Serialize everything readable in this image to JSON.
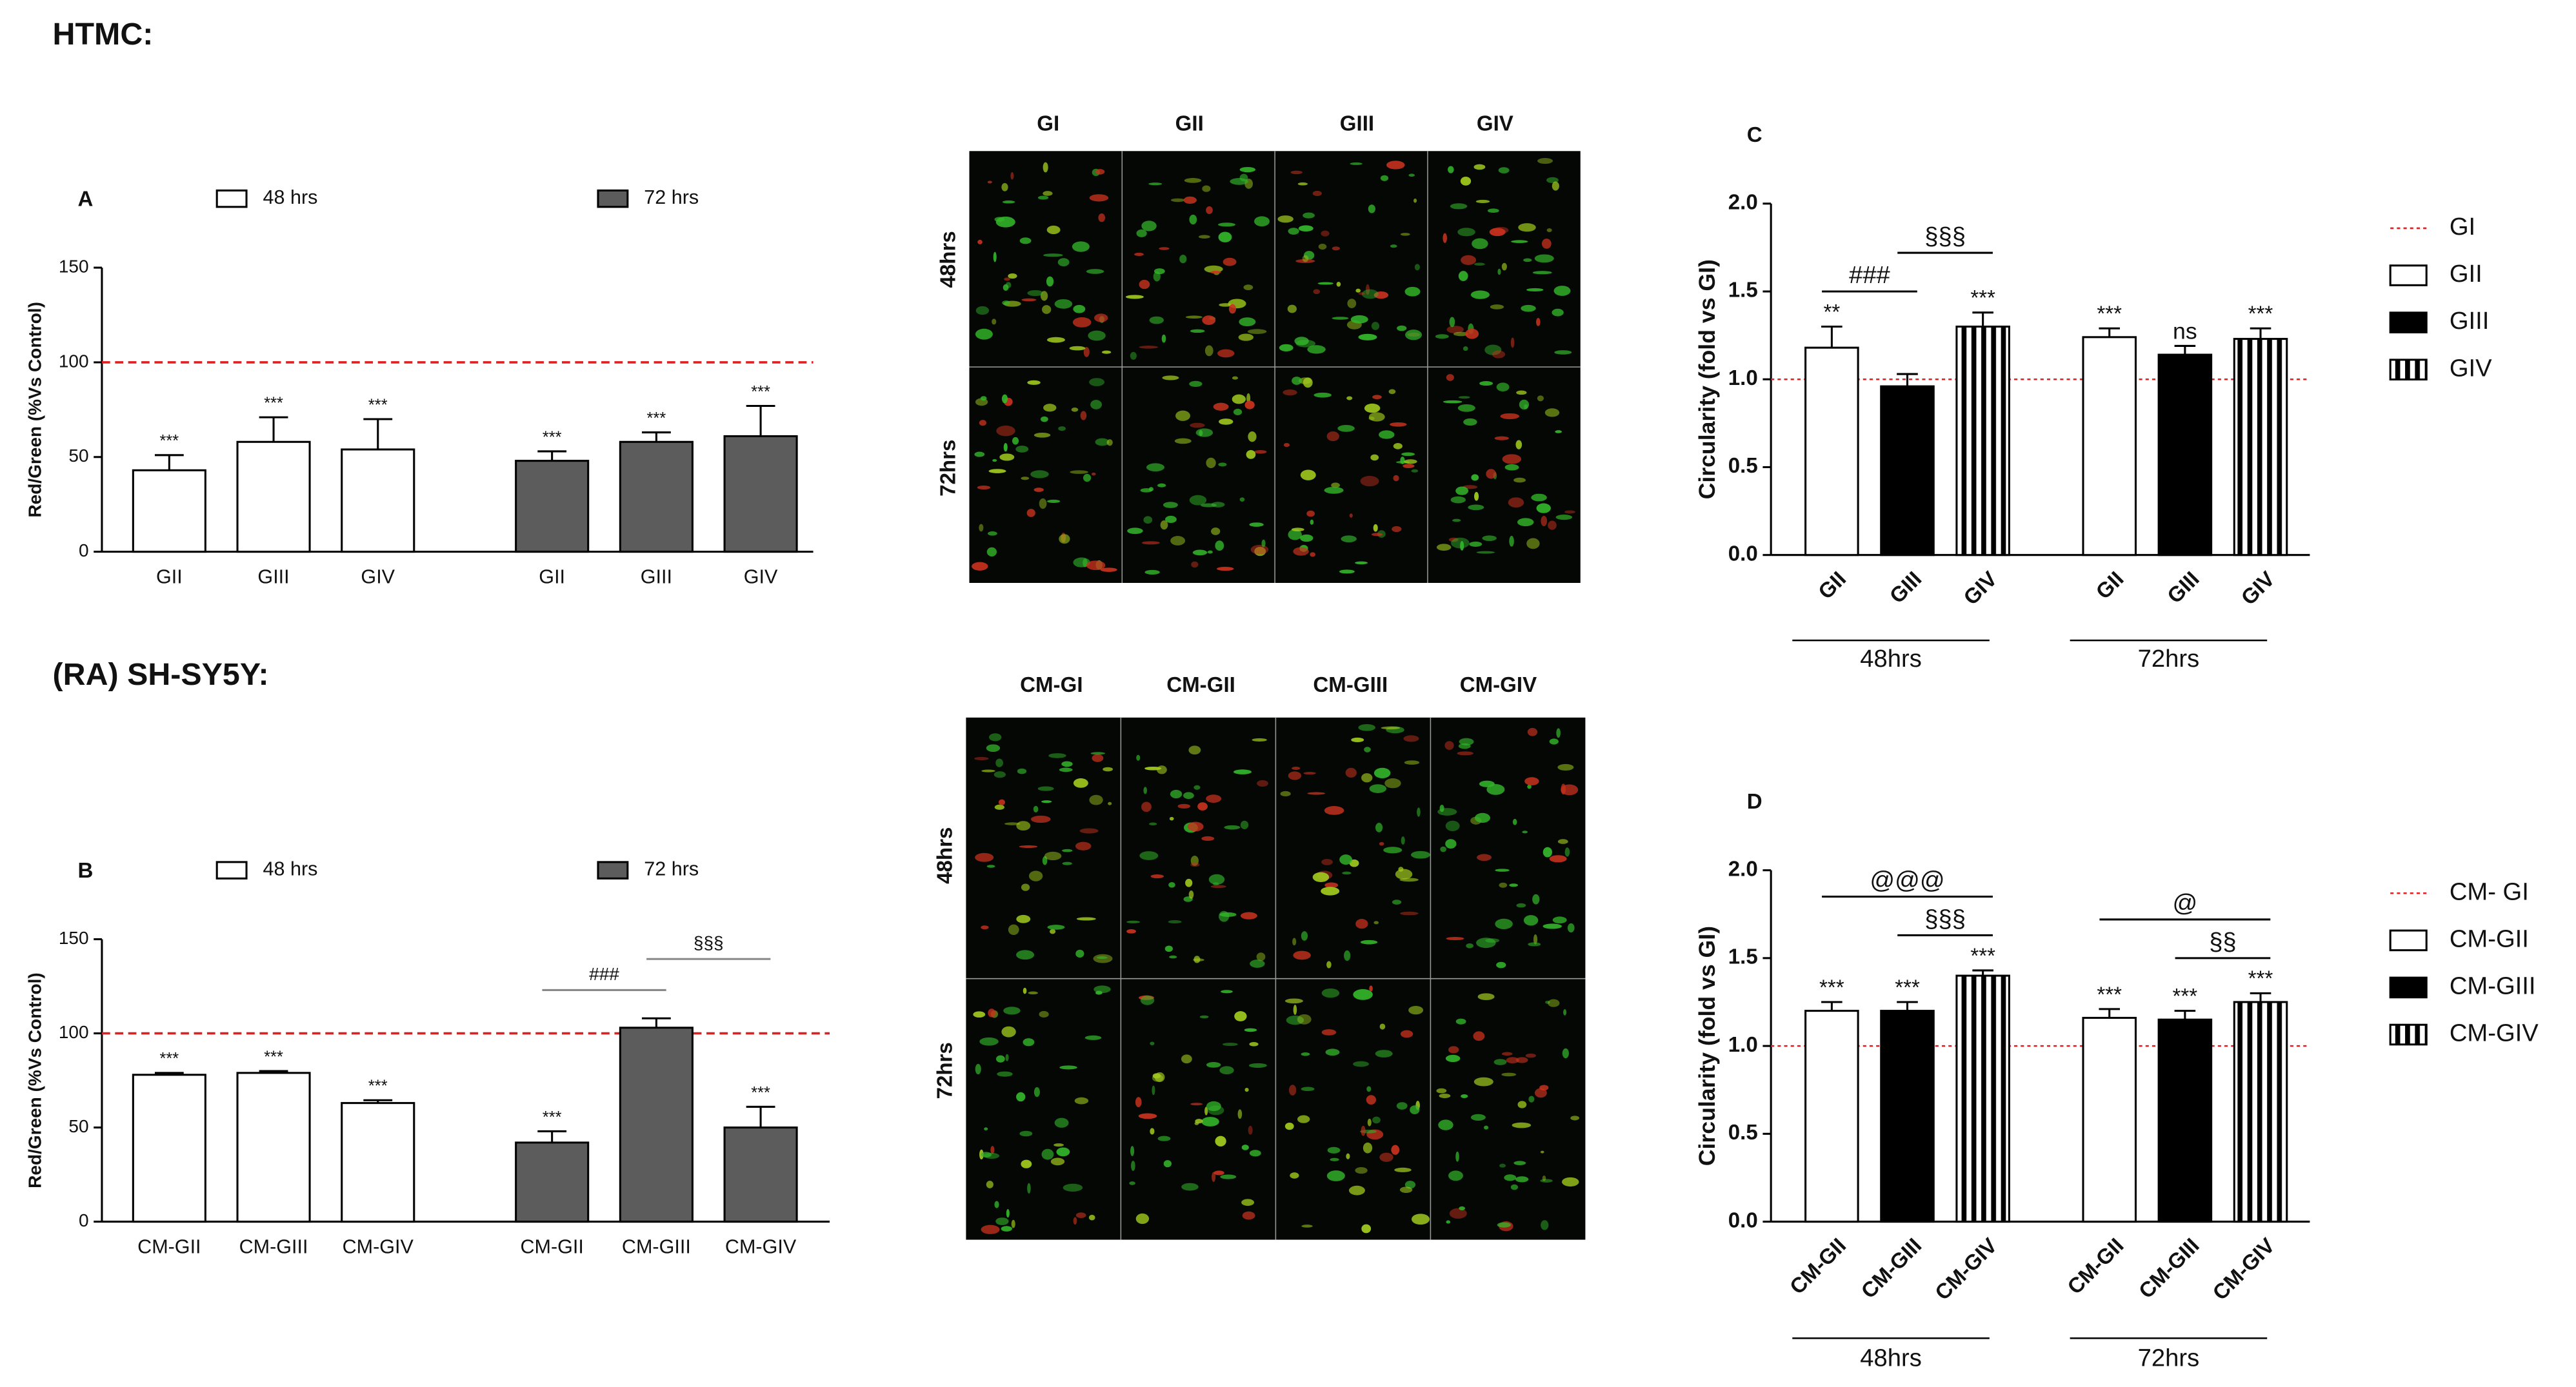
{
  "sections": [
    "HTMC:",
    "(RA) SH-SY5Y:"
  ],
  "micrographs": [
    {
      "columns": [
        "GI",
        "GII",
        "GIII",
        "GIV"
      ],
      "rows": [
        "48hrs",
        "72hrs"
      ]
    },
    {
      "columns": [
        "CM-GI",
        "CM-GII",
        "CM-GIII",
        "CM-GIV"
      ],
      "rows": [
        "48hrs",
        "72hrs"
      ]
    }
  ],
  "chart_data": [
    {
      "type": "bar",
      "panel": "A",
      "group_by": "series",
      "y_label": "Red/Green (%Vs Control)",
      "categories": [
        "GII",
        "GIII",
        "GIV"
      ],
      "series": [
        {
          "name": "48 hrs",
          "color": "#ffffff",
          "values": [
            43,
            58,
            54
          ],
          "errors": [
            8,
            13,
            16
          ],
          "significance": [
            "***",
            "***",
            "***"
          ]
        },
        {
          "name": "72 hrs",
          "color": "#5c5c5c",
          "values": [
            48,
            58,
            61
          ],
          "errors": [
            5,
            5,
            16
          ],
          "significance": [
            "***",
            "***",
            "***"
          ]
        }
      ],
      "reference_line": {
        "value": 100,
        "color": "#e02020"
      },
      "ylim": [
        0,
        150
      ],
      "yticks": [
        0,
        50,
        100,
        150
      ]
    },
    {
      "type": "bar",
      "panel": "B",
      "group_by": "series",
      "y_label": "Red/Green (%Vs Control)",
      "categories": [
        "CM-GII",
        "CM-GIII",
        "CM-GIV"
      ],
      "series": [
        {
          "name": "48 hrs",
          "color": "#ffffff",
          "values": [
            78,
            79,
            63
          ],
          "errors": [
            1,
            1,
            1.5
          ],
          "significance": [
            "***",
            "***",
            "***"
          ]
        },
        {
          "name": "72 hrs",
          "color": "#5c5c5c",
          "values": [
            42,
            103,
            50
          ],
          "errors": [
            6,
            5,
            11
          ],
          "significance": [
            "***",
            null,
            "***"
          ]
        }
      ],
      "brackets": [
        {
          "label": "###",
          "group": 1,
          "from": 0,
          "to": 1
        },
        {
          "label": "§§§",
          "group": 1,
          "from": 1,
          "to": 2
        }
      ],
      "reference_line": {
        "value": 100,
        "color": "#e02020"
      },
      "ylim": [
        0,
        150
      ],
      "yticks": [
        0,
        50,
        100,
        150
      ]
    },
    {
      "type": "bar",
      "panel": "C",
      "group_by": "category",
      "y_label": "Circularity (fold vs GI)",
      "categories": [
        "48hrs",
        "72hrs"
      ],
      "series": [
        {
          "name": "GII",
          "color": "#ffffff",
          "values": [
            1.18,
            1.24
          ],
          "errors": [
            0.12,
            0.05
          ],
          "significance": [
            "**",
            "***"
          ]
        },
        {
          "name": "GIII",
          "color": "#000000",
          "values": [
            0.96,
            1.14
          ],
          "errors": [
            0.07,
            0.05
          ],
          "significance": [
            null,
            "ns"
          ]
        },
        {
          "name": "GIV",
          "color": "#ffffff",
          "hatch": "vertical",
          "values": [
            1.3,
            1.23
          ],
          "errors": [
            0.08,
            0.06
          ],
          "significance": [
            "***",
            "***"
          ]
        }
      ],
      "brackets": [
        {
          "label": "###",
          "group": 0,
          "from": 0,
          "to": 1
        },
        {
          "label": "§§§",
          "group": 0,
          "from": 1,
          "to": 2
        }
      ],
      "reference_line": {
        "name": "GI",
        "value": 1.0,
        "color": "#e02020"
      },
      "ylim": [
        0,
        2.0
      ],
      "yticks": [
        {
          "value": 0,
          "label": "0.0"
        },
        {
          "value": 0.5,
          "label": "0.5"
        },
        {
          "value": 1,
          "label": "1.0"
        },
        {
          "value": 1.5,
          "label": "1.5"
        },
        {
          "value": 2,
          "label": "2.0"
        }
      ]
    },
    {
      "type": "bar",
      "panel": "D",
      "group_by": "category",
      "y_label": "Circularity (fold vs GI)",
      "categories": [
        "48hrs",
        "72hrs"
      ],
      "series": [
        {
          "name": "CM-GII",
          "color": "#ffffff",
          "values": [
            1.2,
            1.16
          ],
          "errors": [
            0.05,
            0.05
          ],
          "significance": [
            "***",
            "***"
          ]
        },
        {
          "name": "CM-GIII",
          "color": "#000000",
          "values": [
            1.2,
            1.15
          ],
          "errors": [
            0.05,
            0.05
          ],
          "significance": [
            "***",
            "***"
          ]
        },
        {
          "name": "CM-GIV",
          "color": "#ffffff",
          "hatch": "vertical",
          "values": [
            1.4,
            1.25
          ],
          "errors": [
            0.03,
            0.05
          ],
          "significance": [
            "***",
            "***"
          ]
        }
      ],
      "brackets": [
        {
          "label": "@@@",
          "group": 0,
          "from": 0,
          "to": 2
        },
        {
          "label": "§§§",
          "group": 0,
          "from": 1,
          "to": 2
        },
        {
          "label": "@",
          "group": 1,
          "from": 0,
          "to": 2
        },
        {
          "label": "§§",
          "group": 1,
          "from": 1,
          "to": 2
        }
      ],
      "reference_line": {
        "name": "CM- GI",
        "value": 1.0,
        "color": "#e02020"
      },
      "ylim": [
        0,
        2.0
      ],
      "yticks": [
        {
          "value": 0,
          "label": "0.0"
        },
        {
          "value": 0.5,
          "label": "0.5"
        },
        {
          "value": 1,
          "label": "1.0"
        },
        {
          "value": 1.5,
          "label": "1.5"
        },
        {
          "value": 2,
          "label": "2.0"
        }
      ]
    }
  ]
}
